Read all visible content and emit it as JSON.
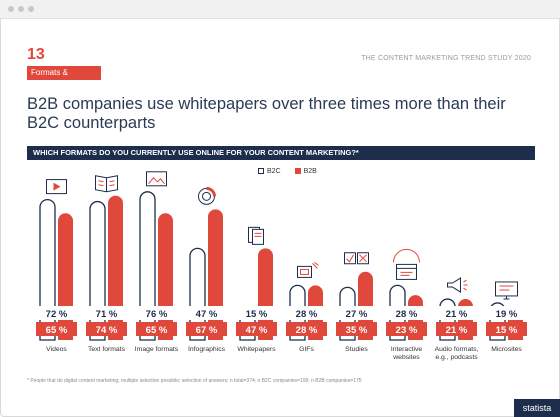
{
  "page_number": "13",
  "section_tag": "Formats & Channels",
  "study_title": "THE CONTENT MARKETING TREND STUDY 2020",
  "headline": "B2B companies use whitepapers over three times more than their B2C counterparts",
  "question": "WHICH FORMATS DO YOU CURRENTLY USE ONLINE FOR YOUR CONTENT MARKETING?*",
  "footnote": "* People that do digital content marketing; multiple selection possible; selection of answers; n total=374; n B2C companies=199; n B2B companies=175",
  "brand": "statista",
  "colors": {
    "b2c": "#1d2e4c",
    "b2b": "#e0483c"
  },
  "chart_data": {
    "type": "bar",
    "categories": [
      "Videos",
      "Text formats",
      "Image formats",
      "Infographics",
      "Whitepapers",
      "GIFs",
      "Studies",
      "Interactive\nwebsites",
      "Audio formats,\ne.g., podcasts",
      "Microsites"
    ],
    "series": [
      {
        "name": "B2C",
        "values": [
          72,
          71,
          76,
          47,
          15,
          28,
          27,
          28,
          21,
          19
        ],
        "labels": [
          "72 %",
          "71 %",
          "76 %",
          "47 %",
          "15 %",
          "28 %",
          "27 %",
          "28 %",
          "21 %",
          "19 %"
        ]
      },
      {
        "name": "B2B",
        "values": [
          65,
          74,
          65,
          67,
          47,
          28,
          35,
          23,
          21,
          15
        ],
        "labels": [
          "65 %",
          "74 %",
          "65 %",
          "67 %",
          "47 %",
          "28 %",
          "35 %",
          "23 %",
          "21 %",
          "15 %"
        ]
      }
    ],
    "ylim": [
      0,
      80
    ],
    "icons": [
      "video-icon",
      "book-icon",
      "image-icon",
      "donut-chart-icon",
      "document-stack-icon",
      "gif-icon",
      "checkbox-icon",
      "browser-window-icon",
      "megaphone-icon",
      "monitor-icon"
    ]
  }
}
